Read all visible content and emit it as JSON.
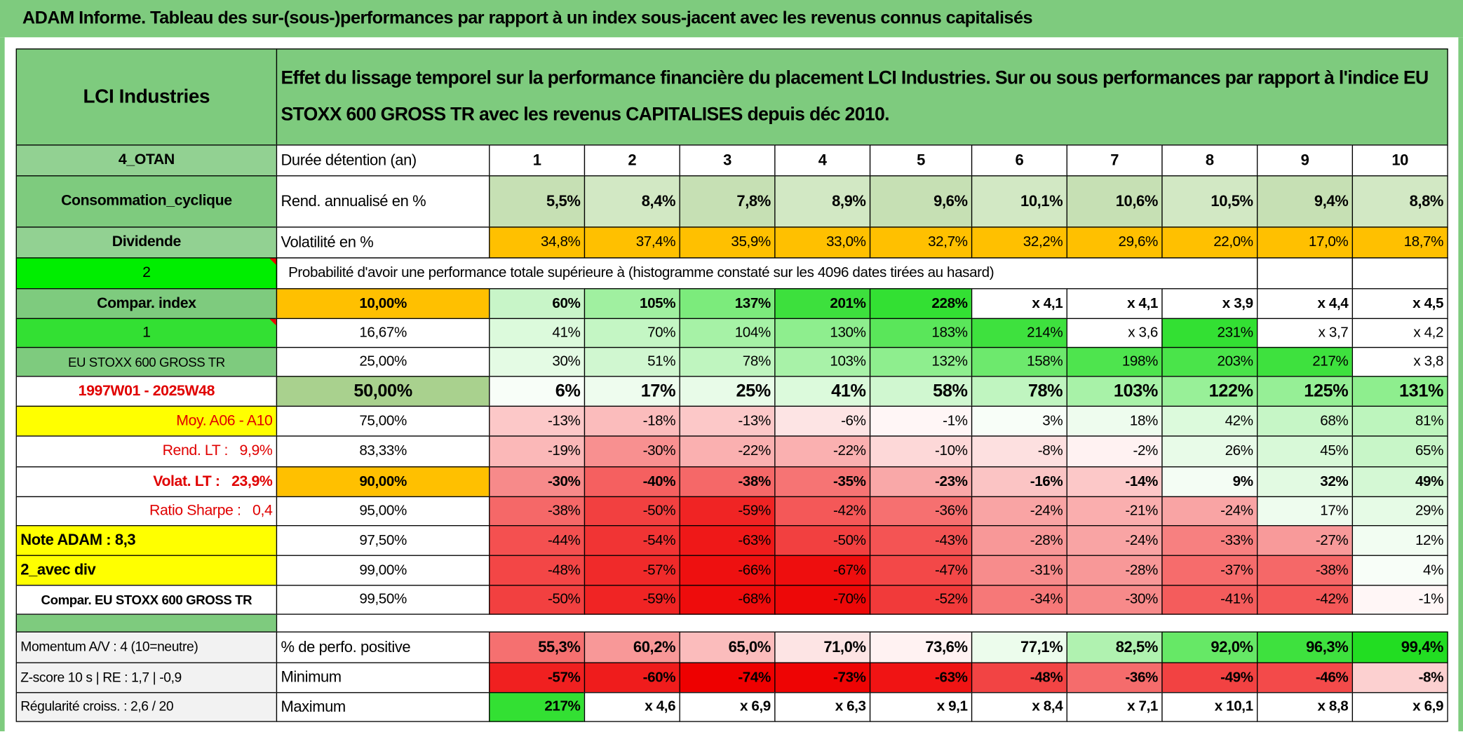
{
  "title": "ADAM Informe. Tableau des sur-(sous-)performances par rapport à un index sous-jacent avec les revenus connus capitalisés",
  "header": {
    "name": "LCI Industries",
    "description": "Effet du lissage temporel sur la performance financière du placement LCI Industries. Sur ou sous performances par rapport à l'indice EU STOXX 600 GROSS TR avec les revenus CAPITALISES depuis déc 2010."
  },
  "rows": [
    {
      "side": "4_OTAN",
      "label": "Durée détention (an)",
      "cells": [
        "1",
        "2",
        "3",
        "4",
        "5",
        "6",
        "7",
        "8",
        "9",
        "10"
      ]
    },
    {
      "side": "Consommation_cyclique",
      "label": "Rend. annualisé en %",
      "cells": [
        "5,5%",
        "8,4%",
        "7,8%",
        "8,9%",
        "9,6%",
        "10,1%",
        "10,6%",
        "10,5%",
        "9,4%",
        "8,8%"
      ]
    },
    {
      "side": "Dividende",
      "label": "Volatilité en %",
      "cells": [
        "34,8%",
        "37,4%",
        "35,9%",
        "33,0%",
        "32,7%",
        "32,2%",
        "29,6%",
        "22,0%",
        "17,0%",
        "18,7%"
      ]
    },
    {
      "side": "2",
      "caption": "Probabilité d'avoir une performance totale supérieure à (histogramme constaté sur les 4096 dates tirées au hasard)"
    },
    {
      "side": "Compar. index",
      "label": "10,00%",
      "cells": [
        "60%",
        "105%",
        "137%",
        "201%",
        "228%",
        "x 4,1",
        "x 4,1",
        "x 3,9",
        "x 4,4",
        "x 4,5"
      ]
    },
    {
      "side": "1",
      "label": "16,67%",
      "cells": [
        "41%",
        "70%",
        "104%",
        "130%",
        "183%",
        "214%",
        "x 3,6",
        "231%",
        "x 3,7",
        "x 4,2"
      ]
    },
    {
      "side": "EU STOXX 600 GROSS TR",
      "label": "25,00%",
      "cells": [
        "30%",
        "51%",
        "78%",
        "103%",
        "132%",
        "158%",
        "198%",
        "203%",
        "217%",
        "x 3,8"
      ]
    },
    {
      "side": "1997W01 - 2025W48",
      "label": "50,00%",
      "cells": [
        "6%",
        "17%",
        "25%",
        "41%",
        "58%",
        "78%",
        "103%",
        "122%",
        "125%",
        "131%"
      ]
    },
    {
      "side": "Moy. A06 - A10",
      "label": "75,00%",
      "cells": [
        "-13%",
        "-18%",
        "-13%",
        "-6%",
        "-1%",
        "3%",
        "18%",
        "42%",
        "68%",
        "81%"
      ]
    },
    {
      "side": "Rend. LT :   9,9%",
      "label": "83,33%",
      "cells": [
        "-19%",
        "-30%",
        "-22%",
        "-22%",
        "-10%",
        "-8%",
        "-2%",
        "26%",
        "45%",
        "65%"
      ]
    },
    {
      "side": "Volat. LT :   23,9%",
      "label": "90,00%",
      "cells": [
        "-30%",
        "-40%",
        "-38%",
        "-35%",
        "-23%",
        "-16%",
        "-14%",
        "9%",
        "32%",
        "49%"
      ]
    },
    {
      "side": "Ratio Sharpe :   0,4",
      "label": "95,00%",
      "cells": [
        "-38%",
        "-50%",
        "-59%",
        "-42%",
        "-36%",
        "-24%",
        "-21%",
        "-24%",
        "17%",
        "29%"
      ]
    },
    {
      "side": "Note ADAM : 8,3",
      "label": "97,50%",
      "cells": [
        "-44%",
        "-54%",
        "-63%",
        "-50%",
        "-43%",
        "-28%",
        "-24%",
        "-33%",
        "-27%",
        "12%"
      ]
    },
    {
      "side": "2_avec div",
      "label": "99,00%",
      "cells": [
        "-48%",
        "-57%",
        "-66%",
        "-67%",
        "-47%",
        "-31%",
        "-28%",
        "-37%",
        "-38%",
        "4%"
      ]
    },
    {
      "side": "Compar. EU STOXX 600 GROSS TR",
      "label": "99,50%",
      "cells": [
        "-50%",
        "-59%",
        "-68%",
        "-70%",
        "-52%",
        "-34%",
        "-30%",
        "-41%",
        "-42%",
        "-1%"
      ]
    },
    {
      "side": "Momentum A/V : 4 (10=neutre)",
      "label": "% de perfo. positive",
      "cells": [
        "55,3%",
        "60,2%",
        "65,0%",
        "71,0%",
        "73,6%",
        "77,1%",
        "82,5%",
        "92,0%",
        "96,3%",
        "99,4%"
      ]
    },
    {
      "side": "Z-score 10 s | RE : 1,7 | -0,9",
      "label": "Minimum",
      "cells": [
        "-57%",
        "-60%",
        "-74%",
        "-73%",
        "-63%",
        "-48%",
        "-36%",
        "-49%",
        "-46%",
        "-8%"
      ]
    },
    {
      "side": "Régularité croiss. : 2,6 / 20",
      "label": "Maximum",
      "cells": [
        "217%",
        "x 4,6",
        "x 6,9",
        "x 6,3",
        "x 9,1",
        "x 8,4",
        "x 7,1",
        "x 10,1",
        "x 8,8",
        "x 6,9"
      ]
    }
  ]
}
